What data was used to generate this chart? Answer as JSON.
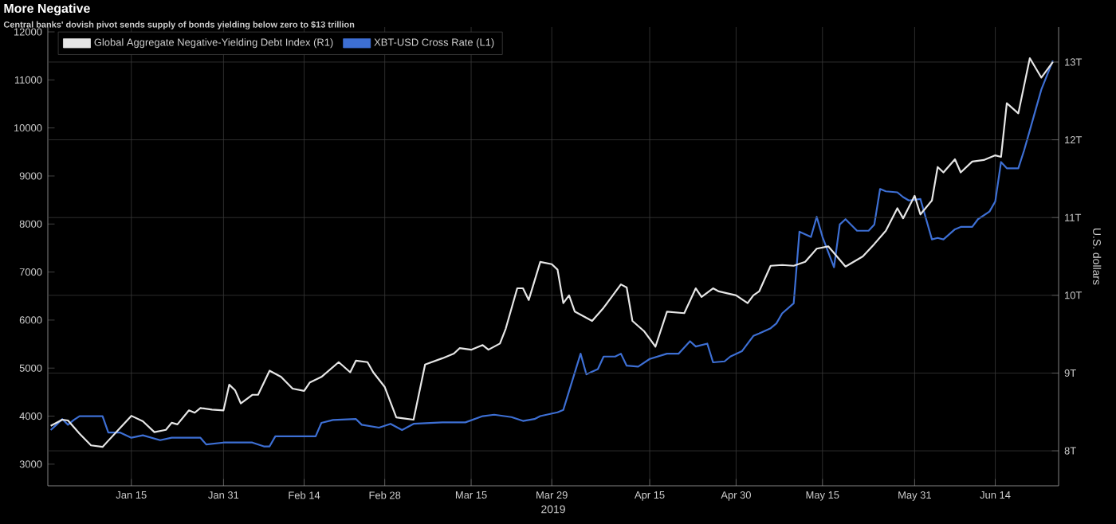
{
  "chart_data": {
    "type": "line",
    "title": "More Negative",
    "subtitle": "Central banks' dovish pivot sends supply of bonds yielding below zero to $13 trillion",
    "xlabel": "2019",
    "y2label": "U.S. dollars",
    "xlim": [
      "2018-12-31T12:00",
      "2019-06-25"
    ],
    "xticks": [
      {
        "value": "2019-01-15",
        "label": "Jan 15"
      },
      {
        "value": "2019-01-31",
        "label": "Jan 31"
      },
      {
        "value": "2019-02-14",
        "label": "Feb 14"
      },
      {
        "value": "2019-02-28",
        "label": "Feb 28"
      },
      {
        "value": "2019-03-15",
        "label": "Mar 15"
      },
      {
        "value": "2019-03-29",
        "label": "Mar 29"
      },
      {
        "value": "2019-04-15",
        "label": "Apr 15"
      },
      {
        "value": "2019-04-30",
        "label": "Apr 30"
      },
      {
        "value": "2019-05-15",
        "label": "May 15"
      },
      {
        "value": "2019-05-31",
        "label": "May 31"
      },
      {
        "value": "2019-06-14",
        "label": "Jun 14"
      }
    ],
    "ylim": [
      2550,
      12100
    ],
    "yticks": [
      3000,
      4000,
      5000,
      6000,
      7000,
      8000,
      9000,
      10000,
      11000,
      12000
    ],
    "y2lim": [
      7.55,
      13.45
    ],
    "y2ticks": [
      {
        "value": 8,
        "label": "8T"
      },
      {
        "value": 9,
        "label": "9T"
      },
      {
        "value": 10,
        "label": "10T"
      },
      {
        "value": 11,
        "label": "11T"
      },
      {
        "value": 12,
        "label": "12T"
      },
      {
        "value": 13,
        "label": "13T"
      }
    ],
    "grid": true,
    "legend": "top left",
    "series": [
      {
        "name": "Global Aggregate Negative-Yielding Debt Index (R1)",
        "color": "#e6e6e6",
        "axis": "y2",
        "x": [
          "2019-01-01",
          "2019-01-02",
          "2019-01-03",
          "2019-01-04",
          "2019-01-06",
          "2019-01-08",
          "2019-01-10",
          "2019-01-11",
          "2019-01-13",
          "2019-01-15",
          "2019-01-17",
          "2019-01-19",
          "2019-01-21",
          "2019-01-22",
          "2019-01-23",
          "2019-01-25",
          "2019-01-26",
          "2019-01-27",
          "2019-01-29",
          "2019-01-31",
          "2019-02-01",
          "2019-02-02",
          "2019-02-03",
          "2019-02-05",
          "2019-02-06",
          "2019-02-08",
          "2019-02-10",
          "2019-02-12",
          "2019-02-14",
          "2019-02-15",
          "2019-02-17",
          "2019-02-20",
          "2019-02-22",
          "2019-02-23",
          "2019-02-25",
          "2019-02-26",
          "2019-02-28",
          "2019-03-02",
          "2019-03-03",
          "2019-03-05",
          "2019-03-07",
          "2019-03-10",
          "2019-03-12",
          "2019-03-13",
          "2019-03-15",
          "2019-03-17",
          "2019-03-18",
          "2019-03-20",
          "2019-03-21",
          "2019-03-23",
          "2019-03-24",
          "2019-03-25",
          "2019-03-27",
          "2019-03-29",
          "2019-03-30",
          "2019-03-31",
          "2019-04-01",
          "2019-04-02",
          "2019-04-05",
          "2019-04-07",
          "2019-04-08",
          "2019-04-10",
          "2019-04-11",
          "2019-04-12",
          "2019-04-14",
          "2019-04-16",
          "2019-04-18",
          "2019-04-21",
          "2019-04-23",
          "2019-04-24",
          "2019-04-26",
          "2019-04-27",
          "2019-04-30",
          "2019-05-02",
          "2019-05-03",
          "2019-05-04",
          "2019-05-06",
          "2019-05-08",
          "2019-05-10",
          "2019-05-12",
          "2019-05-14",
          "2019-05-16",
          "2019-05-19",
          "2019-05-22",
          "2019-05-24",
          "2019-05-26",
          "2019-05-28",
          "2019-05-29",
          "2019-05-31",
          "2019-06-01",
          "2019-06-03",
          "2019-06-04",
          "2019-06-05",
          "2019-06-07",
          "2019-06-08",
          "2019-06-10",
          "2019-06-12",
          "2019-06-14",
          "2019-06-15",
          "2019-06-16",
          "2019-06-18",
          "2019-06-20",
          "2019-06-22",
          "2019-06-24"
        ],
        "values": [
          8.32,
          8.36,
          8.4,
          8.39,
          8.22,
          8.07,
          8.05,
          8.13,
          8.29,
          8.45,
          8.38,
          8.24,
          8.27,
          8.36,
          8.34,
          8.52,
          8.49,
          8.55,
          8.53,
          8.52,
          8.85,
          8.78,
          8.61,
          8.72,
          8.72,
          9.03,
          8.95,
          8.8,
          8.77,
          8.88,
          8.95,
          9.14,
          9.01,
          9.16,
          9.14,
          9.01,
          8.82,
          8.43,
          8.42,
          8.4,
          9.11,
          9.19,
          9.25,
          9.32,
          9.3,
          9.36,
          9.3,
          9.38,
          9.57,
          10.09,
          10.09,
          9.94,
          10.43,
          10.4,
          10.33,
          9.9,
          10.0,
          9.79,
          9.67,
          9.84,
          9.94,
          10.14,
          10.1,
          9.67,
          9.54,
          9.34,
          9.79,
          9.77,
          10.09,
          9.98,
          10.09,
          10.05,
          10.0,
          9.9,
          10.0,
          10.05,
          10.38,
          10.39,
          10.38,
          10.43,
          10.6,
          10.63,
          10.37,
          10.5,
          10.66,
          10.83,
          11.12,
          10.99,
          11.28,
          11.04,
          11.22,
          11.65,
          11.58,
          11.75,
          11.58,
          11.72,
          11.74,
          11.8,
          11.78,
          12.47,
          12.34,
          13.05,
          12.8,
          13.0
        ]
      },
      {
        "name": "XBT-USD Cross Rate (L1)",
        "color": "#3d6fd4",
        "axis": "y",
        "x": [
          "2019-01-01",
          "2019-01-02",
          "2019-01-03",
          "2019-01-04",
          "2019-01-05",
          "2019-01-06",
          "2019-01-10",
          "2019-01-11",
          "2019-01-13",
          "2019-01-15",
          "2019-01-17",
          "2019-01-20",
          "2019-01-22",
          "2019-01-27",
          "2019-01-28",
          "2019-01-31",
          "2019-02-05",
          "2019-02-07",
          "2019-02-08",
          "2019-02-09",
          "2019-02-16",
          "2019-02-17",
          "2019-02-19",
          "2019-02-23",
          "2019-02-24",
          "2019-02-27",
          "2019-03-01",
          "2019-03-03",
          "2019-03-05",
          "2019-03-10",
          "2019-03-14",
          "2019-03-17",
          "2019-03-19",
          "2019-03-22",
          "2019-03-24",
          "2019-03-26",
          "2019-03-27",
          "2019-03-30",
          "2019-03-31",
          "2019-04-03",
          "2019-04-04",
          "2019-04-06",
          "2019-04-07",
          "2019-04-09",
          "2019-04-10",
          "2019-04-11",
          "2019-04-13",
          "2019-04-15",
          "2019-04-18",
          "2019-04-20",
          "2019-04-22",
          "2019-04-23",
          "2019-04-25",
          "2019-04-26",
          "2019-04-28",
          "2019-04-29",
          "2019-05-01",
          "2019-05-03",
          "2019-05-04",
          "2019-05-06",
          "2019-05-07",
          "2019-05-08",
          "2019-05-10",
          "2019-05-11",
          "2019-05-13",
          "2019-05-14",
          "2019-05-15",
          "2019-05-17",
          "2019-05-18",
          "2019-05-19",
          "2019-05-21",
          "2019-05-23",
          "2019-05-24",
          "2019-05-25",
          "2019-05-26",
          "2019-05-28",
          "2019-05-29",
          "2019-05-30",
          "2019-06-01",
          "2019-06-02",
          "2019-06-03",
          "2019-06-04",
          "2019-06-05",
          "2019-06-07",
          "2019-06-08",
          "2019-06-10",
          "2019-06-11",
          "2019-06-13",
          "2019-06-14",
          "2019-06-15",
          "2019-06-16",
          "2019-06-18",
          "2019-06-19",
          "2019-06-20",
          "2019-06-22",
          "2019-06-24"
        ],
        "values": [
          3710,
          3820,
          3940,
          3820,
          3920,
          4000,
          4000,
          3660,
          3660,
          3550,
          3600,
          3500,
          3550,
          3550,
          3410,
          3450,
          3450,
          3370,
          3370,
          3580,
          3580,
          3860,
          3920,
          3940,
          3820,
          3760,
          3840,
          3710,
          3840,
          3870,
          3870,
          4000,
          4030,
          3980,
          3900,
          3940,
          4000,
          4080,
          4130,
          5300,
          4870,
          4980,
          5240,
          5240,
          5300,
          5050,
          5030,
          5190,
          5300,
          5300,
          5560,
          5450,
          5510,
          5120,
          5140,
          5240,
          5350,
          5670,
          5720,
          5830,
          5930,
          6140,
          6350,
          7840,
          7730,
          8150,
          7730,
          7100,
          7990,
          8100,
          7860,
          7860,
          7990,
          8730,
          8680,
          8660,
          8560,
          8490,
          8520,
          8100,
          7680,
          7710,
          7680,
          7890,
          7940,
          7940,
          8100,
          8260,
          8470,
          9290,
          9160,
          9160,
          9530,
          9950,
          10800,
          11400
        ]
      }
    ]
  }
}
